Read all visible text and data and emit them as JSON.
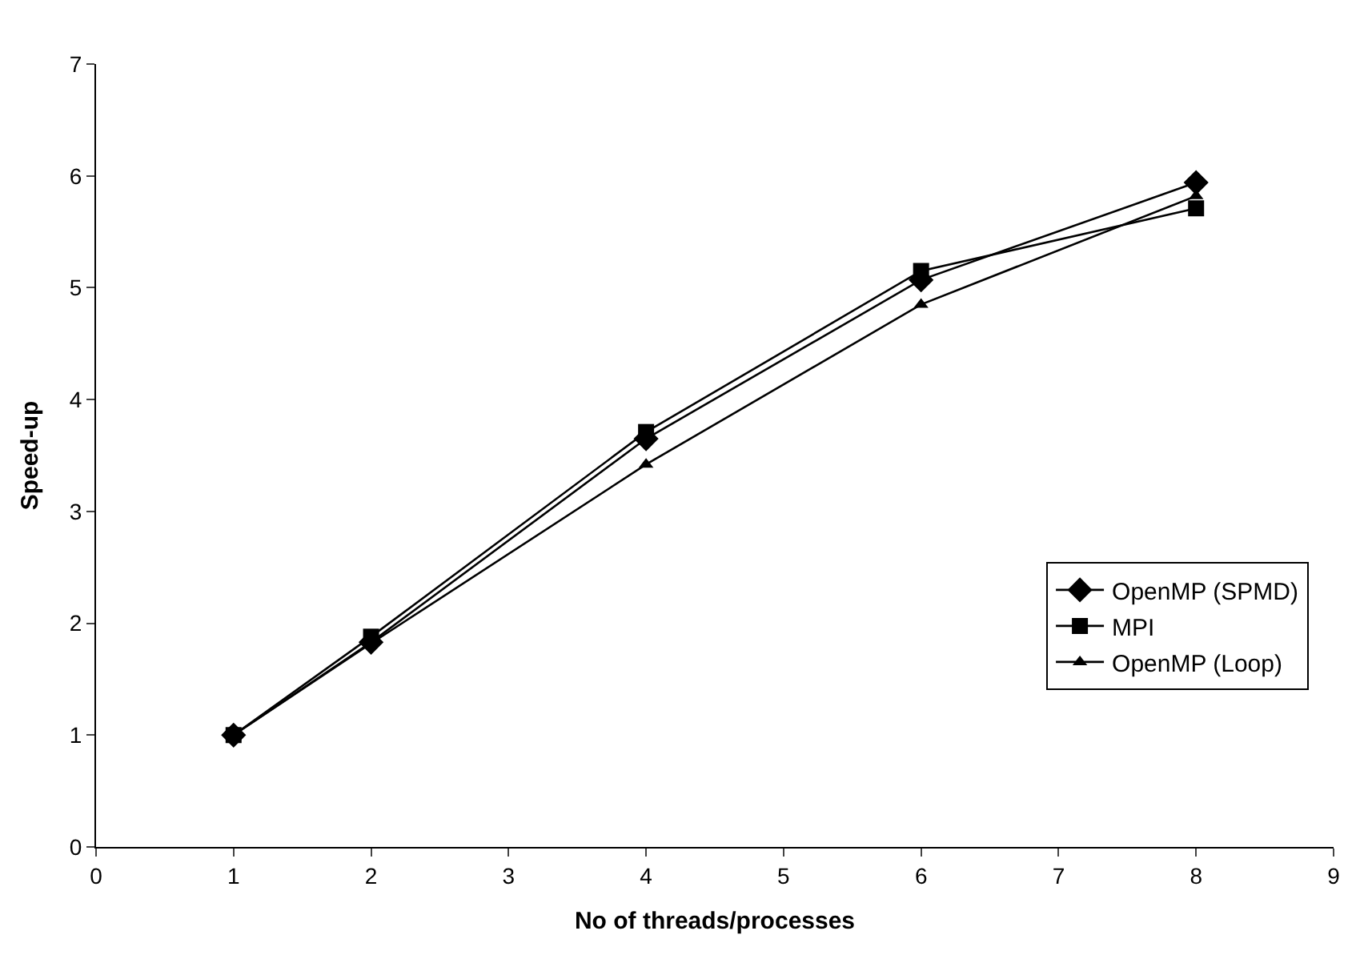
{
  "chart_data": {
    "type": "line",
    "xlabel": "No of threads/processes",
    "ylabel": "Speed-up",
    "x": [
      1,
      2,
      4,
      6,
      8
    ],
    "series": [
      {
        "name": "OpenMP (SPMD)",
        "color": "#000000",
        "marker": "diamond",
        "values": [
          1.0,
          1.83,
          3.65,
          5.07,
          5.94
        ]
      },
      {
        "name": "MPI",
        "color": "#000000",
        "marker": "square",
        "values": [
          1.0,
          1.88,
          3.71,
          5.15,
          5.71
        ]
      },
      {
        "name": "OpenMP (Loop)",
        "color": "#000000",
        "marker": "triangle",
        "values": [
          1.0,
          1.82,
          3.42,
          4.85,
          5.82
        ]
      }
    ],
    "xlim": [
      0,
      9
    ],
    "xticks": [
      0,
      1,
      2,
      3,
      4,
      5,
      6,
      7,
      8,
      9
    ],
    "ylim": [
      0,
      7
    ],
    "yticks": [
      0,
      1,
      2,
      3,
      4,
      5,
      6,
      7
    ],
    "grid": false,
    "legend": "bottom right",
    "line_style": "solid"
  }
}
